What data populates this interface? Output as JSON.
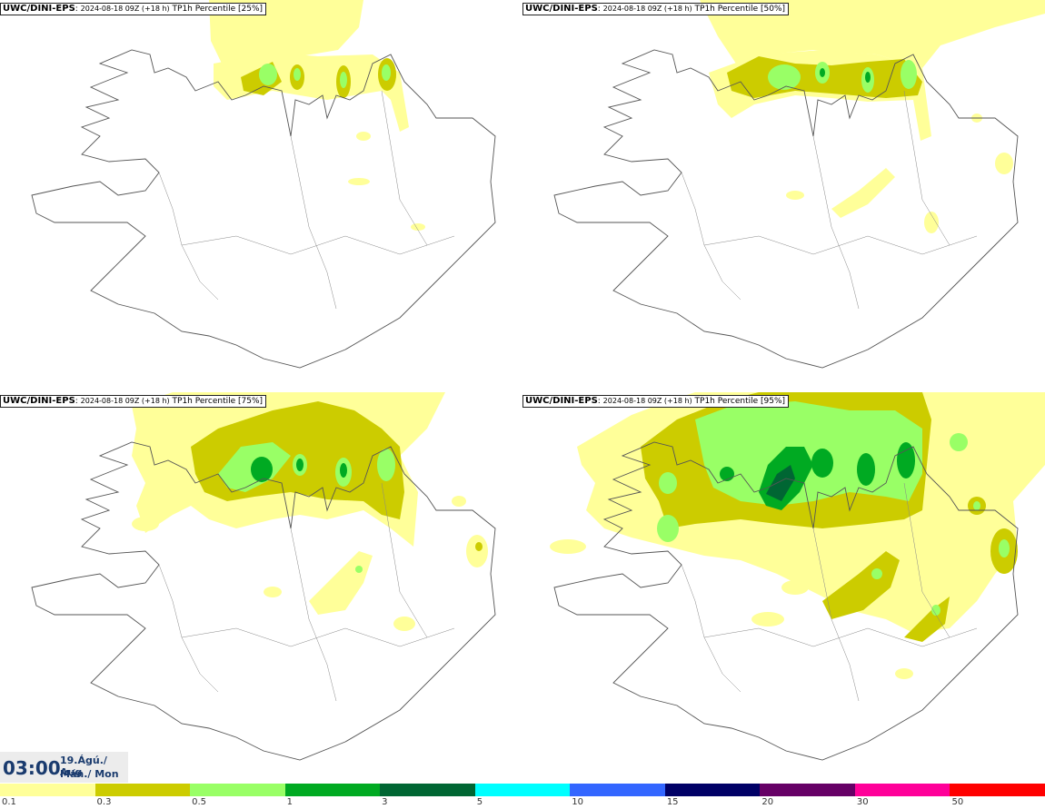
{
  "panels": [
    {
      "model": "UWC/DINI-EPS",
      "meta": "2024-08-18 09Z (+18 h)",
      "param": "TP1h Percentile",
      "pct": "[25%]"
    },
    {
      "model": "UWC/DINI-EPS",
      "meta": "2024-08-18 09Z (+18 h)",
      "param": "TP1h Percentile",
      "pct": "[50%]"
    },
    {
      "model": "UWC/DINI-EPS",
      "meta": "2024-08-18 09Z (+18 h)",
      "param": "TP1h Percentile",
      "pct": "[75%]"
    },
    {
      "model": "UWC/DINI-EPS",
      "meta": "2024-08-18 09Z (+18 h)",
      "param": "TP1h Percentile",
      "pct": "[95%]"
    }
  ],
  "valid_time": {
    "time": "03:00",
    "date_line1": "19.Ágú./ Aug",
    "date_line2": "Mán./ Mon"
  },
  "legend": {
    "labels": [
      "0.1",
      "0.3",
      "0.5",
      "1",
      "3",
      "5",
      "10",
      "15",
      "20",
      "30",
      "50"
    ],
    "colors": [
      "#ffff99",
      "#cccc00",
      "#99ff66",
      "#00aa22",
      "#006633",
      "#00ffff",
      "#3366ff",
      "#000066",
      "#660066",
      "#ff0099",
      "#ff0000"
    ]
  },
  "fills": {
    "light": "#ffff99",
    "mid": "#cccc00",
    "lime": "#99ff66",
    "green": "#00aa22",
    "dark": "#006633",
    "coast": "#555555"
  }
}
